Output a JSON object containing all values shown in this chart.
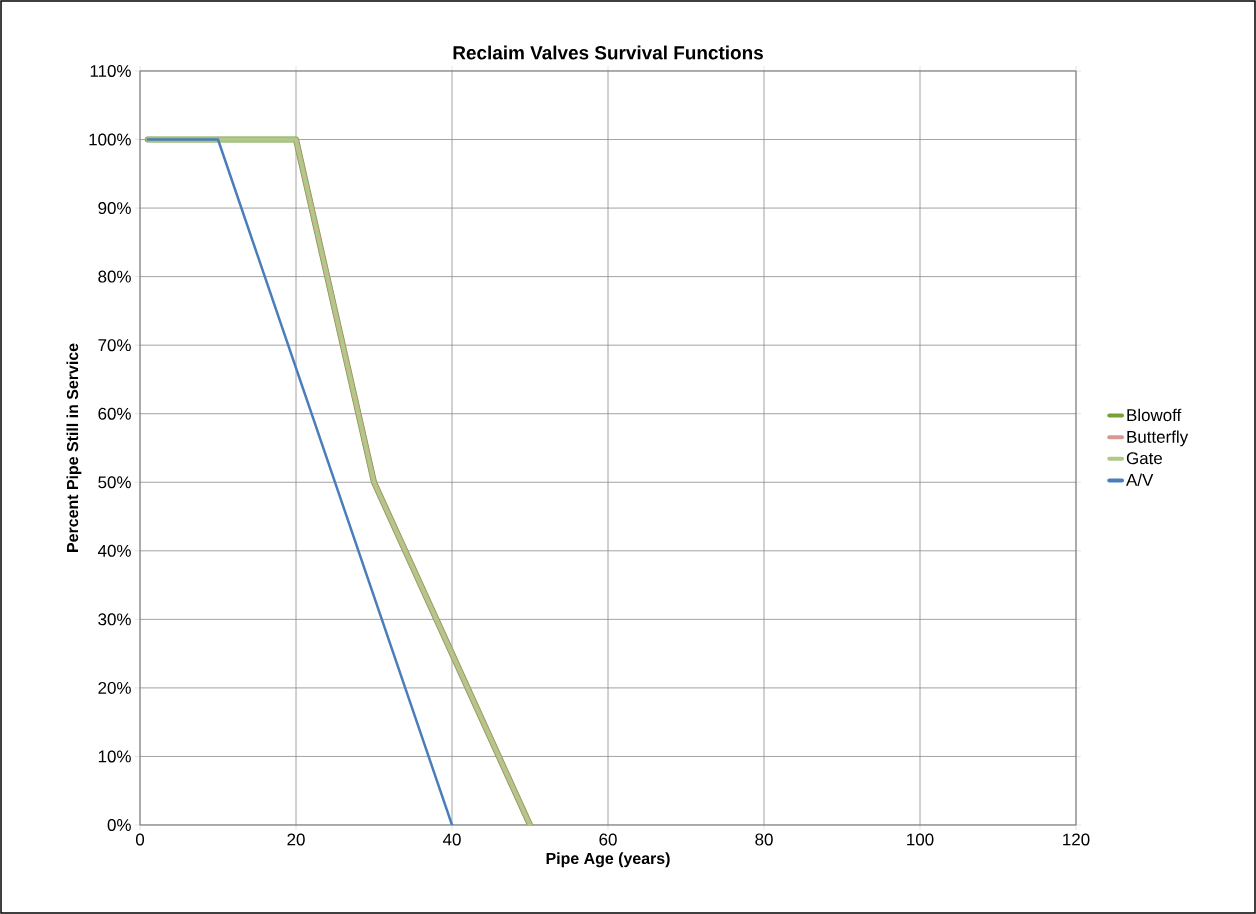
{
  "chart_data": {
    "type": "line",
    "title": "Reclaim Valves Survival Functions",
    "xlabel": "Pipe Age (years)",
    "ylabel": "Percent Pipe Still in Service",
    "xlim": [
      0,
      120
    ],
    "xticks": [
      0,
      20,
      40,
      60,
      80,
      100,
      120
    ],
    "ylim": [
      0,
      110
    ],
    "yticks": [
      {
        "value": 0,
        "label": "0%"
      },
      {
        "value": 10,
        "label": "10%"
      },
      {
        "value": 20,
        "label": "20%"
      },
      {
        "value": 30,
        "label": "30%"
      },
      {
        "value": 40,
        "label": "40%"
      },
      {
        "value": 50,
        "label": "50%"
      },
      {
        "value": 60,
        "label": "60%"
      },
      {
        "value": 70,
        "label": "70%"
      },
      {
        "value": 80,
        "label": "80%"
      },
      {
        "value": 90,
        "label": "90%"
      },
      {
        "value": 100,
        "label": "100%"
      },
      {
        "value": 110,
        "label": "110%"
      }
    ],
    "grid": true,
    "legend": "right",
    "series": [
      {
        "name": "Blowoff",
        "color": "#77a03c",
        "x": [
          1,
          20,
          30,
          40,
          50
        ],
        "values": [
          100,
          100,
          50,
          25,
          0
        ]
      },
      {
        "name": "Butterfly",
        "color": "#d99694",
        "x": [
          1,
          20,
          30,
          40,
          50
        ],
        "values": [
          100,
          100,
          50,
          25,
          0
        ]
      },
      {
        "name": "Gate",
        "color": "#b0c98a",
        "x": [
          1,
          20,
          30,
          40,
          50
        ],
        "values": [
          100,
          100,
          50,
          25,
          0
        ]
      },
      {
        "name": "A/V",
        "color": "#4a7ebb",
        "x": [
          1,
          10,
          40
        ],
        "values": [
          100,
          100,
          0
        ]
      }
    ]
  }
}
